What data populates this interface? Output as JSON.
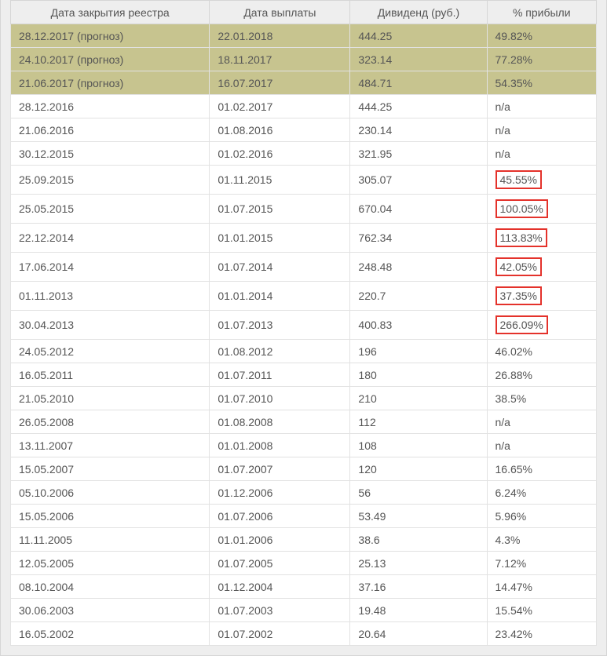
{
  "table": {
    "columns": [
      "Дата закрытия реестра",
      "Дата выплаты",
      "Дивиденд (руб.)",
      "% прибыли"
    ],
    "rows": [
      {
        "forecast": true,
        "highlight": false,
        "cells": [
          "28.12.2017 (прогноз)",
          "22.01.2018",
          "444.25",
          "49.82%"
        ]
      },
      {
        "forecast": true,
        "highlight": false,
        "cells": [
          "24.10.2017 (прогноз)",
          "18.11.2017",
          "323.14",
          "77.28%"
        ]
      },
      {
        "forecast": true,
        "highlight": false,
        "cells": [
          "21.06.2017 (прогноз)",
          "16.07.2017",
          "484.71",
          "54.35%"
        ]
      },
      {
        "forecast": false,
        "highlight": false,
        "cells": [
          "28.12.2016",
          "01.02.2017",
          "444.25",
          "n/a"
        ]
      },
      {
        "forecast": false,
        "highlight": false,
        "cells": [
          "21.06.2016",
          "01.08.2016",
          "230.14",
          "n/a"
        ]
      },
      {
        "forecast": false,
        "highlight": false,
        "cells": [
          "30.12.2015",
          "01.02.2016",
          "321.95",
          "n/a"
        ]
      },
      {
        "forecast": false,
        "highlight": true,
        "cells": [
          "25.09.2015",
          "01.11.2015",
          "305.07",
          "45.55%"
        ]
      },
      {
        "forecast": false,
        "highlight": true,
        "cells": [
          "25.05.2015",
          "01.07.2015",
          "670.04",
          "100.05%"
        ]
      },
      {
        "forecast": false,
        "highlight": true,
        "cells": [
          "22.12.2014",
          "01.01.2015",
          "762.34",
          "113.83%"
        ]
      },
      {
        "forecast": false,
        "highlight": true,
        "cells": [
          "17.06.2014",
          "01.07.2014",
          "248.48",
          "42.05%"
        ]
      },
      {
        "forecast": false,
        "highlight": true,
        "cells": [
          "01.11.2013",
          "01.01.2014",
          "220.7",
          "37.35%"
        ]
      },
      {
        "forecast": false,
        "highlight": true,
        "cells": [
          "30.04.2013",
          "01.07.2013",
          "400.83",
          "266.09%"
        ]
      },
      {
        "forecast": false,
        "highlight": false,
        "cells": [
          "24.05.2012",
          "01.08.2012",
          "196",
          "46.02%"
        ]
      },
      {
        "forecast": false,
        "highlight": false,
        "cells": [
          "16.05.2011",
          "01.07.2011",
          "180",
          "26.88%"
        ]
      },
      {
        "forecast": false,
        "highlight": false,
        "cells": [
          "21.05.2010",
          "01.07.2010",
          "210",
          "38.5%"
        ]
      },
      {
        "forecast": false,
        "highlight": false,
        "cells": [
          "26.05.2008",
          "01.08.2008",
          "112",
          "n/a"
        ]
      },
      {
        "forecast": false,
        "highlight": false,
        "cells": [
          "13.11.2007",
          "01.01.2008",
          "108",
          "n/a"
        ]
      },
      {
        "forecast": false,
        "highlight": false,
        "cells": [
          "15.05.2007",
          "01.07.2007",
          "120",
          "16.65%"
        ]
      },
      {
        "forecast": false,
        "highlight": false,
        "cells": [
          "05.10.2006",
          "01.12.2006",
          "56",
          "6.24%"
        ]
      },
      {
        "forecast": false,
        "highlight": false,
        "cells": [
          "15.05.2006",
          "01.07.2006",
          "53.49",
          "5.96%"
        ]
      },
      {
        "forecast": false,
        "highlight": false,
        "cells": [
          "11.11.2005",
          "01.01.2006",
          "38.6",
          "4.3%"
        ]
      },
      {
        "forecast": false,
        "highlight": false,
        "cells": [
          "12.05.2005",
          "01.07.2005",
          "25.13",
          "7.12%"
        ]
      },
      {
        "forecast": false,
        "highlight": false,
        "cells": [
          "08.10.2004",
          "01.12.2004",
          "37.16",
          "14.47%"
        ]
      },
      {
        "forecast": false,
        "highlight": false,
        "cells": [
          "30.06.2003",
          "01.07.2003",
          "19.48",
          "15.54%"
        ]
      },
      {
        "forecast": false,
        "highlight": false,
        "cells": [
          "16.05.2002",
          "01.07.2002",
          "20.64",
          "23.42%"
        ]
      }
    ]
  },
  "style": {
    "forecast_bg": "#c7c48f",
    "header_bg": "#eeeeee",
    "row_bg": "#ffffff",
    "border_color": "#e2e2e2",
    "highlight_border": "#e4322b",
    "text_color": "#555555",
    "font_size": 14
  }
}
